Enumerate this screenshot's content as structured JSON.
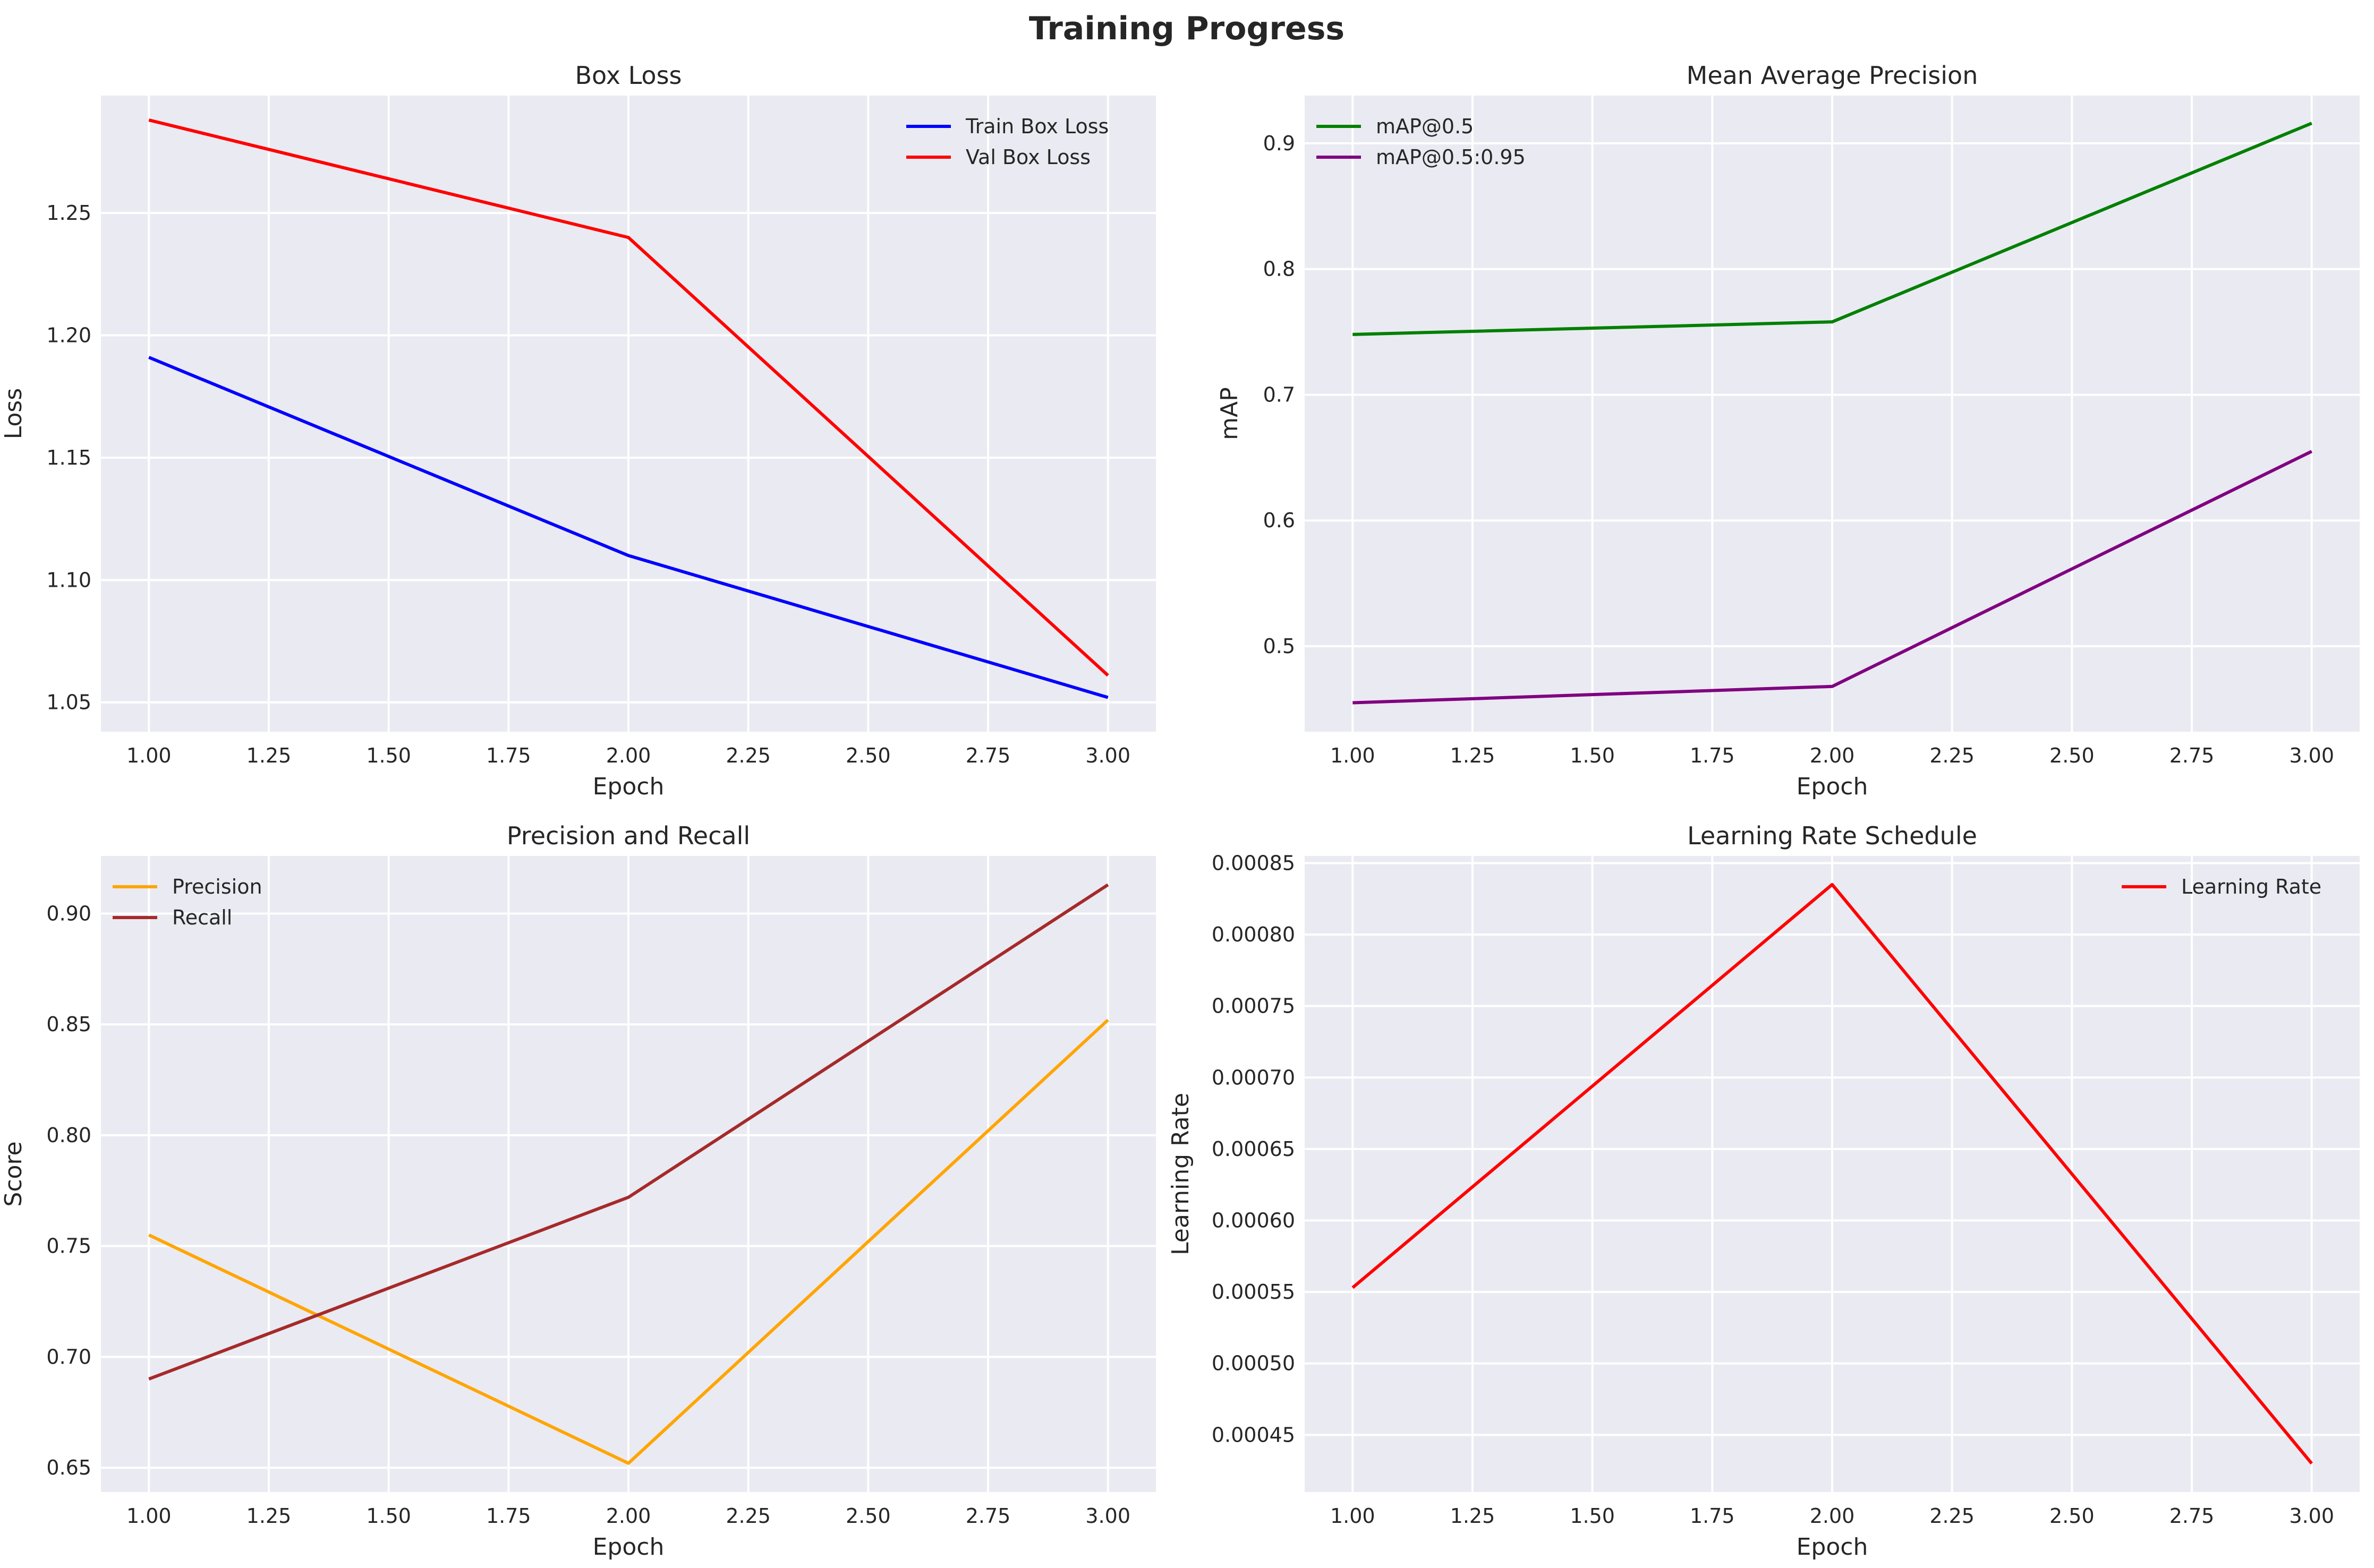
{
  "suptitle": "Training Progress",
  "chart_data": [
    {
      "type": "line",
      "title": "Box Loss",
      "xlabel": "Epoch",
      "ylabel": "Loss",
      "x": [
        1,
        2,
        3
      ],
      "xlim": [
        0.9,
        3.1
      ],
      "ylim": [
        1.038,
        1.298
      ],
      "xticks": [
        1.0,
        1.25,
        1.5,
        1.75,
        2.0,
        2.25,
        2.5,
        2.75,
        3.0
      ],
      "xtick_labels": [
        "1.00",
        "1.25",
        "1.50",
        "1.75",
        "2.00",
        "2.25",
        "2.50",
        "2.75",
        "3.00"
      ],
      "yticks": [
        1.05,
        1.1,
        1.15,
        1.2,
        1.25
      ],
      "ytick_labels": [
        "1.05",
        "1.10",
        "1.15",
        "1.20",
        "1.25"
      ],
      "legend": "upper-right",
      "grid": true,
      "series": [
        {
          "name": "Train Box Loss",
          "color": "#0000ff",
          "values": [
            1.191,
            1.11,
            1.052
          ]
        },
        {
          "name": "Val Box Loss",
          "color": "#ff0000",
          "values": [
            1.288,
            1.24,
            1.061
          ]
        }
      ]
    },
    {
      "type": "line",
      "title": "Mean Average Precision",
      "xlabel": "Epoch",
      "ylabel": "mAP",
      "x": [
        1,
        2,
        3
      ],
      "xlim": [
        0.9,
        3.1
      ],
      "ylim": [
        0.432,
        0.938
      ],
      "xticks": [
        1.0,
        1.25,
        1.5,
        1.75,
        2.0,
        2.25,
        2.5,
        2.75,
        3.0
      ],
      "xtick_labels": [
        "1.00",
        "1.25",
        "1.50",
        "1.75",
        "2.00",
        "2.25",
        "2.50",
        "2.75",
        "3.00"
      ],
      "yticks": [
        0.5,
        0.6,
        0.7,
        0.8,
        0.9
      ],
      "ytick_labels": [
        "0.5",
        "0.6",
        "0.7",
        "0.8",
        "0.9"
      ],
      "legend": "upper-left",
      "grid": true,
      "series": [
        {
          "name": "mAP@0.5",
          "color": "#008000",
          "values": [
            0.748,
            0.758,
            0.916
          ]
        },
        {
          "name": "mAP@0.5:0.95",
          "color": "#800080",
          "values": [
            0.455,
            0.468,
            0.655
          ]
        }
      ]
    },
    {
      "type": "line",
      "title": "Precision and Recall",
      "xlabel": "Epoch",
      "ylabel": "Score",
      "x": [
        1,
        2,
        3
      ],
      "xlim": [
        0.9,
        3.1
      ],
      "ylim": [
        0.639,
        0.926
      ],
      "xticks": [
        1.0,
        1.25,
        1.5,
        1.75,
        2.0,
        2.25,
        2.5,
        2.75,
        3.0
      ],
      "xtick_labels": [
        "1.00",
        "1.25",
        "1.50",
        "1.75",
        "2.00",
        "2.25",
        "2.50",
        "2.75",
        "3.00"
      ],
      "yticks": [
        0.65,
        0.7,
        0.75,
        0.8,
        0.85,
        0.9
      ],
      "ytick_labels": [
        "0.65",
        "0.70",
        "0.75",
        "0.80",
        "0.85",
        "0.90"
      ],
      "legend": "upper-left",
      "grid": true,
      "series": [
        {
          "name": "Precision",
          "color": "#ffa500",
          "values": [
            0.755,
            0.652,
            0.852
          ]
        },
        {
          "name": "Recall",
          "color": "#a52a2a",
          "values": [
            0.69,
            0.772,
            0.913
          ]
        }
      ]
    },
    {
      "type": "line",
      "title": "Learning Rate Schedule",
      "xlabel": "Epoch",
      "ylabel": "Learning Rate",
      "x": [
        1,
        2,
        3
      ],
      "xlim": [
        0.9,
        3.1
      ],
      "ylim": [
        0.00041,
        0.000855
      ],
      "xticks": [
        1.0,
        1.25,
        1.5,
        1.75,
        2.0,
        2.25,
        2.5,
        2.75,
        3.0
      ],
      "xtick_labels": [
        "1.00",
        "1.25",
        "1.50",
        "1.75",
        "2.00",
        "2.25",
        "2.50",
        "2.75",
        "3.00"
      ],
      "yticks": [
        0.00045,
        0.0005,
        0.00055,
        0.0006,
        0.00065,
        0.0007,
        0.00075,
        0.0008,
        0.00085
      ],
      "ytick_labels": [
        "0.00045",
        "0.00050",
        "0.00055",
        "0.00060",
        "0.00065",
        "0.00070",
        "0.00075",
        "0.00080",
        "0.00085"
      ],
      "legend": "upper-right",
      "grid": true,
      "series": [
        {
          "name": "Learning Rate",
          "color": "#ff0000",
          "values": [
            0.000553,
            0.000835,
            0.00043
          ]
        }
      ]
    }
  ]
}
